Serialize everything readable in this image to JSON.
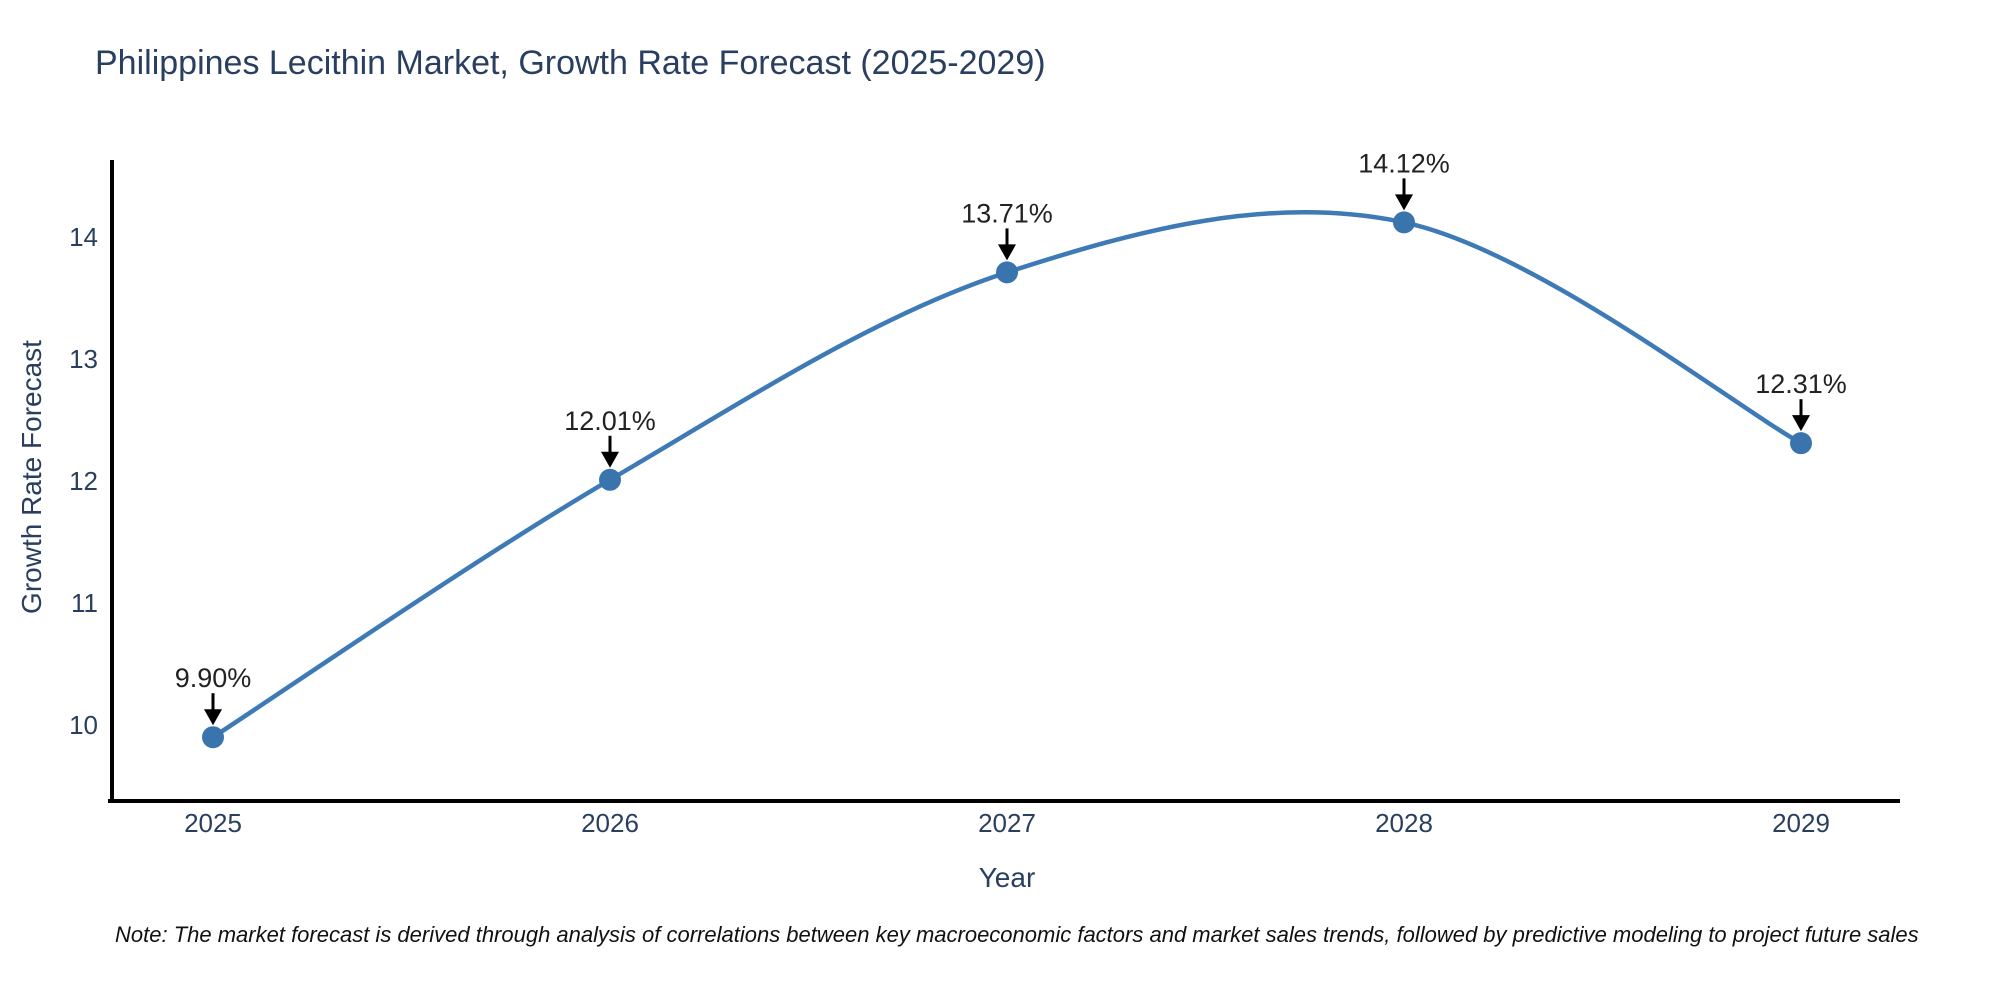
{
  "title": "Philippines Lecithin Market, Growth Rate Forecast (2025-2029)",
  "note": "Note: The market forecast is derived through analysis of correlations between key macroeconomic factors and market sales trends, followed by predictive modeling to project future sales",
  "chart_data": {
    "type": "line",
    "line_shape": "spline",
    "title": "Philippines Lecithin Market, Growth Rate Forecast (2025-2029)",
    "xlabel": "Year",
    "ylabel": "Growth Rate Forecast",
    "x": [
      2025,
      2026,
      2027,
      2028,
      2029
    ],
    "series": [
      {
        "name": "Growth Rate Forecast",
        "values": [
          9.9,
          12.01,
          13.71,
          14.12,
          12.31
        ]
      }
    ],
    "point_labels": [
      "9.90%",
      "12.01%",
      "13.71%",
      "14.12%",
      "12.31%"
    ],
    "xticks": [
      "2025",
      "2026",
      "2027",
      "2028",
      "2029"
    ],
    "yticks": [
      10,
      11,
      12,
      13,
      14
    ],
    "ylim": [
      9.38,
      14.63
    ],
    "grid": false,
    "legend_position": "none",
    "colors": {
      "line": "#3e7ab5",
      "marker": "#3a74ad",
      "axis_line": "#000000",
      "tick_text": "#2a3f5f",
      "annotation_text": "#222222",
      "annotation_arrow": "#000000"
    }
  }
}
